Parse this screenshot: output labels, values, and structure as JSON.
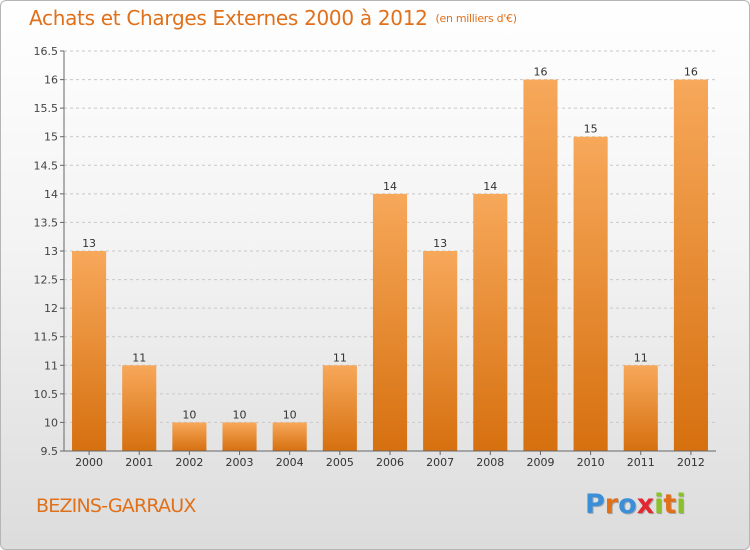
{
  "header": {
    "title": "Achats et Charges Externes 2000 à 2012",
    "unit": "(en milliers d'€)"
  },
  "commune": "BEZINS-GARRAUX",
  "logo": {
    "letters": [
      {
        "char": "P",
        "color": "#3a8fd8"
      },
      {
        "char": "r",
        "color": "#e0701a"
      },
      {
        "char": "o",
        "color": "#3a8fd8"
      },
      {
        "char": "x",
        "color": "#e3262f"
      },
      {
        "char": "i",
        "color": "#8bbf2c"
      },
      {
        "char": "t",
        "color": "#e0701a"
      },
      {
        "char": "i",
        "color": "#8bbf2c"
      }
    ]
  },
  "chart_data": {
    "type": "bar",
    "title": "Achats et Charges Externes 2000 à 2012",
    "subtitle": "(en milliers d'€)",
    "categories": [
      "2000",
      "2001",
      "2002",
      "2003",
      "2004",
      "2005",
      "2006",
      "2007",
      "2008",
      "2009",
      "2010",
      "2011",
      "2012"
    ],
    "values": [
      13,
      11,
      10,
      10,
      10,
      11,
      14,
      13,
      14,
      16,
      15,
      11,
      16
    ],
    "data_labels": [
      "13",
      "11",
      "10",
      "10",
      "10",
      "11",
      "14",
      "13",
      "14",
      "16",
      "15",
      "11",
      "16"
    ],
    "ylim": [
      9.5,
      16.5
    ],
    "yticks": [
      9.5,
      10,
      10.5,
      11,
      11.5,
      12,
      12.5,
      13,
      13.5,
      14,
      14.5,
      15,
      15.5,
      16,
      16.5
    ],
    "ytick_labels": [
      "9.5",
      "10",
      "10.5",
      "11",
      "11.5",
      "12",
      "12.5",
      "13",
      "13.5",
      "14",
      "14.5",
      "15",
      "15.5",
      "16",
      "16.5"
    ],
    "xlabel": "",
    "ylabel": "",
    "grid": "dashed horizontal",
    "bar_color": "#f08a2c"
  }
}
